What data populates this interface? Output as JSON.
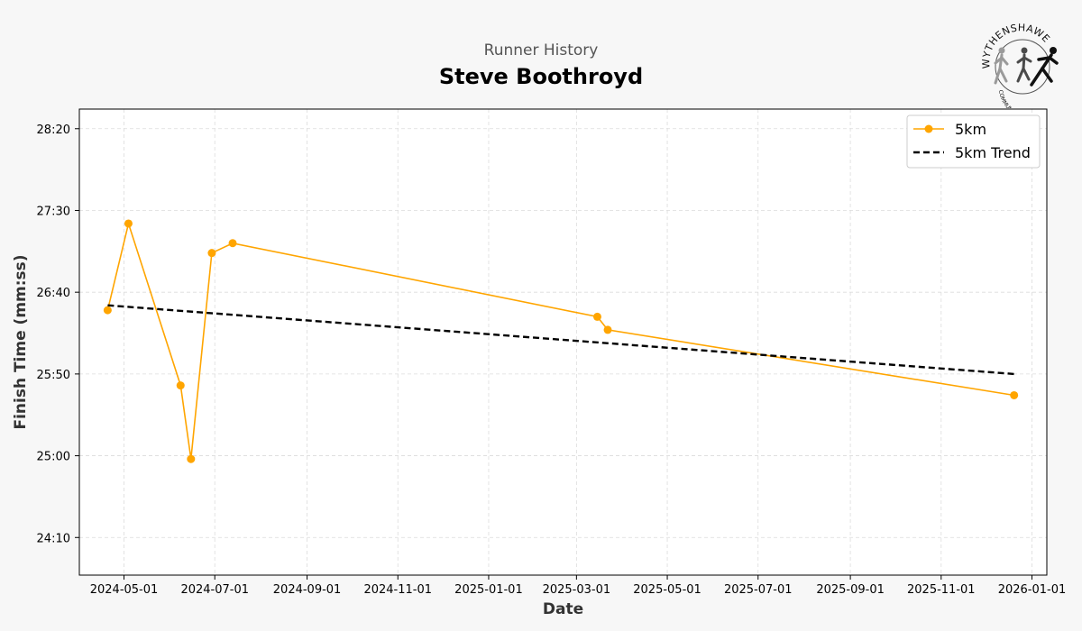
{
  "header": {
    "subtitle": "Runner History",
    "title": "Steve Boothroyd"
  },
  "logo": {
    "top_text": "WYTHENSHAWE",
    "bottom_text": "COMMUNITY RUN"
  },
  "chart_data": {
    "type": "line",
    "xlabel": "Date",
    "ylabel": "Finish Time (mm:ss)",
    "xlim": [
      "2024-04-01",
      "2026-01-11"
    ],
    "ylim": [
      "23:47",
      "28:32"
    ],
    "x_ticks": [
      "2024-05-01",
      "2024-07-01",
      "2024-09-01",
      "2024-11-01",
      "2025-01-01",
      "2025-03-01",
      "2025-05-01",
      "2025-07-01",
      "2025-09-01",
      "2025-11-01",
      "2026-01-01"
    ],
    "y_ticks": [
      "24:10",
      "25:00",
      "25:50",
      "26:40",
      "27:30",
      "28:20"
    ],
    "grid": true,
    "legend_position": "top-right",
    "series": [
      {
        "name": "5km",
        "color": "#FFA500",
        "style": "solid-line-with-markers",
        "points": [
          {
            "x": "2024-04-20",
            "y": "26:29"
          },
          {
            "x": "2024-05-04",
            "y": "27:22"
          },
          {
            "x": "2024-06-08",
            "y": "25:43"
          },
          {
            "x": "2024-06-15",
            "y": "24:58"
          },
          {
            "x": "2024-06-29",
            "y": "27:04"
          },
          {
            "x": "2024-07-13",
            "y": "27:10"
          },
          {
            "x": "2025-03-15",
            "y": "26:25"
          },
          {
            "x": "2025-03-22",
            "y": "26:17"
          },
          {
            "x": "2025-12-20",
            "y": "25:37"
          }
        ]
      },
      {
        "name": "5km Trend",
        "color": "#000000",
        "style": "dashed-line",
        "points": [
          {
            "x": "2024-04-20",
            "y": "26:32"
          },
          {
            "x": "2025-12-20",
            "y": "25:50"
          }
        ]
      }
    ]
  }
}
